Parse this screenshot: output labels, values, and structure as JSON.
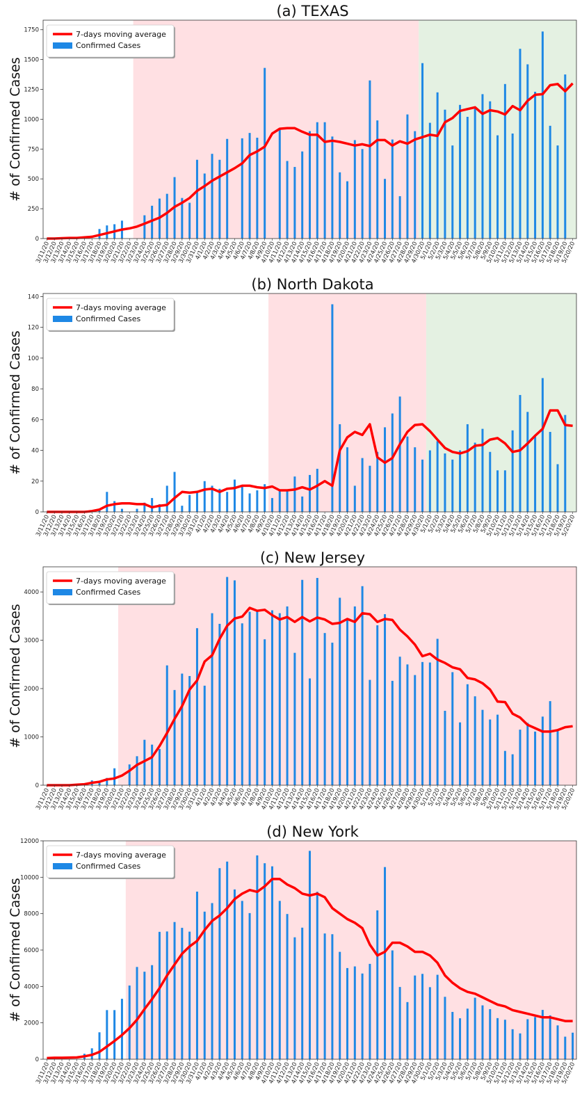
{
  "dates": [
    "3/11/20",
    "3/12/20",
    "3/13/20",
    "3/14/20",
    "3/15/20",
    "3/16/20",
    "3/17/20",
    "3/18/20",
    "3/19/20",
    "3/20/20",
    "3/21/20",
    "3/22/20",
    "3/23/20",
    "3/24/20",
    "3/25/20",
    "3/26/20",
    "3/27/20",
    "3/28/20",
    "3/29/20",
    "3/30/20",
    "3/31/20",
    "4/1/20",
    "4/2/20",
    "4/3/20",
    "4/4/20",
    "4/5/20",
    "4/6/20",
    "4/7/20",
    "4/8/20",
    "4/9/20",
    "4/10/20",
    "4/11/20",
    "4/12/20",
    "4/13/20",
    "4/14/20",
    "4/15/20",
    "4/16/20",
    "4/17/20",
    "4/18/20",
    "4/19/20",
    "4/20/20",
    "4/21/20",
    "4/22/20",
    "4/23/20",
    "4/24/20",
    "4/25/20",
    "4/26/20",
    "4/27/20",
    "4/28/20",
    "4/29/20",
    "4/30/20",
    "5/1/20",
    "5/2/20",
    "5/3/20",
    "5/4/20",
    "5/5/20",
    "5/6/20",
    "5/7/20",
    "5/8/20",
    "5/9/20",
    "5/10/20",
    "5/11/20",
    "5/12/20",
    "5/13/20",
    "5/14/20",
    "5/15/20",
    "5/16/20",
    "5/17/20",
    "5/18/20",
    "5/19/20",
    "5/20/20"
  ],
  "colors": {
    "bar": "#1e88e5",
    "line": "#ff0000",
    "pink_region": "#ffe0e3",
    "green_region": "#e4f1e2"
  },
  "legend": {
    "line_label": "7-days moving average",
    "bar_label": "Confirmed Cases",
    "placement": "top-left"
  },
  "chart_data": [
    {
      "type": "bar",
      "title": "(a) TEXAS",
      "ylabel": "# of Confirmed Cases",
      "ylim": [
        0,
        1830
      ],
      "yticks": [
        0,
        250,
        500,
        750,
        1000,
        1250,
        1500,
        1750
      ],
      "regions": [
        {
          "color": "pink",
          "from": "3/23/20",
          "to": "4/30/20"
        },
        {
          "color": "green",
          "from": "4/30/20",
          "to": "5/20/20"
        }
      ],
      "series": [
        {
          "name": "Confirmed Cases",
          "values": [
            0,
            0,
            0,
            0,
            0,
            0,
            0,
            80,
            110,
            120,
            150,
            0,
            0,
            195,
            275,
            335,
            375,
            515,
            340,
            300,
            660,
            545,
            710,
            660,
            835,
            0,
            840,
            885,
            845,
            1430,
            0,
            920,
            650,
            600,
            730,
            900,
            975,
            975,
            855,
            555,
            480,
            825,
            750,
            1325,
            990,
            500,
            830,
            355,
            1040,
            900,
            1470,
            970,
            1225,
            1080,
            780,
            1120,
            1020,
            1105,
            1210,
            1150,
            865,
            1295,
            880,
            1590,
            1460,
            1230,
            1735,
            945,
            780,
            1375,
            0
          ]
        },
        {
          "name": "7-days moving average",
          "values": [
            0,
            0,
            3,
            5,
            5,
            10,
            15,
            30,
            45,
            60,
            75,
            85,
            100,
            125,
            150,
            175,
            215,
            265,
            300,
            340,
            400,
            440,
            485,
            520,
            555,
            590,
            630,
            700,
            730,
            770,
            880,
            920,
            925,
            925,
            895,
            870,
            870,
            810,
            820,
            810,
            795,
            780,
            790,
            775,
            825,
            825,
            780,
            815,
            795,
            830,
            850,
            870,
            860,
            975,
            1010,
            1070,
            1085,
            1100,
            1045,
            1075,
            1065,
            1040,
            1110,
            1075,
            1155,
            1205,
            1210,
            1285,
            1295,
            1235,
            1300
          ]
        }
      ]
    },
    {
      "type": "bar",
      "title": "(b) North Dakota",
      "ylabel": "# of Confirmed Cases",
      "ylim": [
        0,
        142
      ],
      "yticks": [
        0,
        20,
        40,
        60,
        80,
        100,
        120,
        140
      ],
      "regions": [
        {
          "color": "pink",
          "from": "4/10/20",
          "to": "5/1/20"
        },
        {
          "color": "green",
          "from": "5/1/20",
          "to": "5/20/20"
        }
      ],
      "series": [
        {
          "name": "Confirmed Cases",
          "values": [
            0,
            0,
            0,
            0,
            0,
            0,
            0,
            1,
            13,
            7,
            2,
            0,
            2,
            6,
            9,
            5,
            17,
            26,
            4,
            11,
            13,
            20,
            17,
            15,
            13,
            21,
            17,
            12,
            14,
            18,
            9,
            14,
            14,
            23,
            10,
            24,
            28,
            0,
            135,
            57,
            42,
            17,
            35,
            30,
            39,
            55,
            64,
            75,
            49,
            42,
            34,
            40,
            46,
            38,
            34,
            40,
            57,
            45,
            54,
            39,
            27,
            27,
            53,
            76,
            65,
            49,
            87,
            52,
            31,
            63,
            0
          ]
        },
        {
          "name": "7-days moving average",
          "values": [
            0,
            0,
            0,
            0,
            0,
            0,
            0.5,
            1.5,
            4,
            5,
            5.5,
            5.5,
            5,
            5,
            3,
            4,
            4.5,
            9,
            13,
            12.5,
            13,
            14.5,
            15,
            13,
            15,
            15.5,
            17,
            17,
            16,
            15.5,
            16.5,
            14,
            14,
            14.5,
            16,
            14.5,
            17,
            20,
            17,
            40,
            48.5,
            52,
            50,
            57,
            35.5,
            32,
            35,
            44,
            52,
            56.5,
            57,
            52.5,
            47,
            41.5,
            39,
            38,
            39.5,
            43,
            43.5,
            47,
            48,
            44.5,
            39,
            40,
            44.5,
            49.5,
            54,
            66,
            66,
            56.5,
            56
          ]
        }
      ]
    },
    {
      "type": "bar",
      "title": "(c) New Jersey",
      "ylabel": "# of Confirmed Cases",
      "ylim": [
        0,
        4520
      ],
      "yticks": [
        0,
        1000,
        2000,
        3000,
        4000
      ],
      "regions": [
        {
          "color": "pink",
          "from": "3/21/20",
          "to": "5/20/20"
        }
      ],
      "series": [
        {
          "name": "Confirmed Cases",
          "values": [
            0,
            0,
            0,
            0,
            0,
            0,
            100,
            90,
            150,
            350,
            0,
            430,
            600,
            940,
            840,
            750,
            2480,
            1970,
            2310,
            2260,
            3250,
            2060,
            3560,
            3340,
            4310,
            4240,
            3350,
            3590,
            3600,
            3020,
            3620,
            3560,
            3700,
            2740,
            4250,
            2210,
            4290,
            3150,
            2950,
            3880,
            3460,
            3700,
            4120,
            2180,
            3310,
            3540,
            2160,
            2660,
            2500,
            2280,
            2550,
            2540,
            3030,
            1540,
            2340,
            1300,
            2090,
            1840,
            1560,
            1360,
            1460,
            710,
            640,
            1150,
            1290,
            1110,
            1420,
            1740,
            1120,
            0,
            0
          ]
        },
        {
          "name": "7-days moving average",
          "values": [
            0,
            0,
            0,
            0,
            10,
            20,
            50,
            70,
            120,
            140,
            200,
            300,
            420,
            500,
            580,
            810,
            1080,
            1370,
            1640,
            1980,
            2170,
            2560,
            2690,
            3030,
            3300,
            3450,
            3490,
            3670,
            3610,
            3630,
            3520,
            3430,
            3480,
            3380,
            3480,
            3390,
            3470,
            3430,
            3340,
            3360,
            3440,
            3380,
            3560,
            3540,
            3380,
            3440,
            3420,
            3220,
            3080,
            2910,
            2670,
            2720,
            2600,
            2530,
            2440,
            2400,
            2220,
            2190,
            2110,
            1980,
            1730,
            1720,
            1480,
            1400,
            1250,
            1180,
            1110,
            1110,
            1140,
            1200,
            1220
          ]
        }
      ]
    },
    {
      "type": "bar",
      "title": "(d) New York",
      "ylabel": "# of Confirmed Cases",
      "ylim": [
        0,
        12000
      ],
      "yticks": [
        0,
        2000,
        4000,
        6000,
        8000,
        10000,
        12000
      ],
      "regions": [
        {
          "color": "pink",
          "from": "3/22/20",
          "to": "5/20/20"
        }
      ],
      "series": [
        {
          "name": "Confirmed Cases",
          "values": [
            0,
            0,
            0,
            0,
            0,
            300,
            600,
            1480,
            2700,
            2700,
            3320,
            4050,
            5070,
            4810,
            5170,
            7000,
            7020,
            7540,
            7220,
            7010,
            9210,
            8110,
            8580,
            10500,
            10860,
            9330,
            8700,
            8030,
            11200,
            10770,
            10600,
            8700,
            7980,
            6700,
            7230,
            11450,
            9200,
            6910,
            6870,
            5900,
            5010,
            5100,
            4710,
            5240,
            8180,
            10560,
            5980,
            3970,
            3140,
            4600,
            4690,
            3960,
            4640,
            3430,
            2600,
            2250,
            2780,
            3380,
            2960,
            2750,
            2260,
            2170,
            1650,
            1420,
            2200,
            2320,
            2710,
            2410,
            1860,
            1240,
            1460
          ]
        },
        {
          "name": "7-days moving average",
          "values": [
            60,
            80,
            80,
            90,
            100,
            160,
            240,
            400,
            700,
            1000,
            1330,
            1710,
            2170,
            2750,
            3300,
            3900,
            4600,
            5200,
            5800,
            6200,
            6500,
            7100,
            7600,
            7900,
            8300,
            8800,
            9100,
            9300,
            9200,
            9500,
            9900,
            9900,
            9600,
            9400,
            9100,
            9000,
            9100,
            8900,
            8300,
            8000,
            7700,
            7500,
            7200,
            6300,
            5700,
            5900,
            6400,
            6400,
            6200,
            5900,
            5900,
            5700,
            5300,
            4600,
            4200,
            3900,
            3700,
            3600,
            3400,
            3200,
            3000,
            2900,
            2700,
            2600,
            2500,
            2400,
            2300,
            2300,
            2200,
            2100,
            2100
          ]
        }
      ]
    }
  ]
}
